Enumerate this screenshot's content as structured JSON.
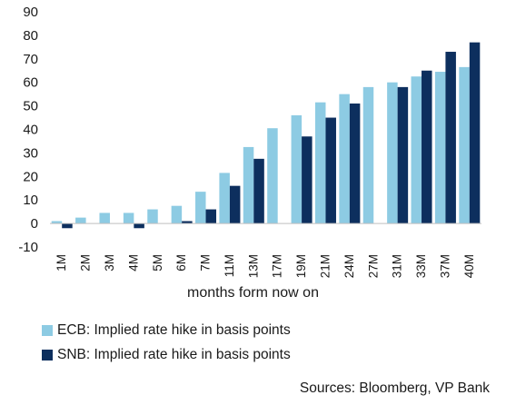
{
  "chart_data": {
    "type": "bar",
    "categories": [
      "1M",
      "2M",
      "3M",
      "4M",
      "5M",
      "6M",
      "7M",
      "11M",
      "13M",
      "17M",
      "19M",
      "21M",
      "24M",
      "27M",
      "31M",
      "33M",
      "37M",
      "40M"
    ],
    "series": [
      {
        "name": "ECB: Implied rate hike in basis points",
        "color": "#8dcbe3",
        "values": [
          1,
          2.5,
          4.5,
          4.5,
          6,
          7.5,
          13.5,
          21.5,
          32.5,
          40.5,
          46,
          51.5,
          55,
          58,
          60,
          62.5,
          64.5,
          66.5
        ]
      },
      {
        "name": "SNB: Implied rate hike in basis points",
        "color": "#0d2f5e",
        "values": [
          -2,
          null,
          null,
          -2,
          null,
          1,
          6,
          16,
          27.5,
          null,
          37,
          45,
          51,
          null,
          58,
          65,
          73,
          77
        ]
      }
    ],
    "xlabel": "months form now on",
    "ylabel": "",
    "ylim": [
      -10,
      90
    ],
    "yticks": [
      -10,
      0,
      10,
      20,
      30,
      40,
      50,
      60,
      70,
      80,
      90
    ],
    "grid": false,
    "legend_position": "bottom-left"
  },
  "source_text": "Sources: Bloomberg, VP Bank"
}
